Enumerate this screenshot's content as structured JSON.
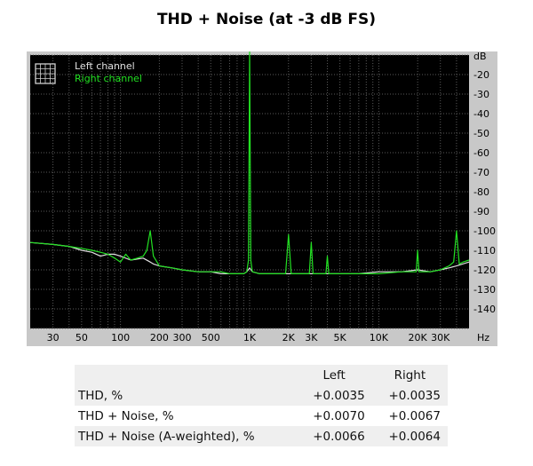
{
  "title": "THD + Noise (at -3 dB FS)",
  "chart_data": {
    "type": "line",
    "title": "THD + Noise (at -3 dB FS)",
    "xscale": "log",
    "xlim": [
      20,
      50000
    ],
    "ylim": [
      -150,
      -10
    ],
    "x_unit": "Hz",
    "y_unit": "dB",
    "x_ticks": [
      {
        "value": 30,
        "label": "30"
      },
      {
        "value": 50,
        "label": "50"
      },
      {
        "value": 100,
        "label": "100"
      },
      {
        "value": 200,
        "label": "200"
      },
      {
        "value": 300,
        "label": "300"
      },
      {
        "value": 500,
        "label": "500"
      },
      {
        "value": 1000,
        "label": "1K"
      },
      {
        "value": 2000,
        "label": "2K"
      },
      {
        "value": 3000,
        "label": "3K"
      },
      {
        "value": 5000,
        "label": "5K"
      },
      {
        "value": 10000,
        "label": "10K"
      },
      {
        "value": 20000,
        "label": "20K"
      },
      {
        "value": 30000,
        "label": "30K"
      }
    ],
    "y_ticks": [
      -20,
      -30,
      -40,
      -50,
      -60,
      -70,
      -80,
      -90,
      -100,
      -110,
      -120,
      -130,
      -140
    ],
    "grid": true,
    "legend_position": "top-left",
    "series": [
      {
        "name": "Left channel",
        "color": "#e0e0e0",
        "x": [
          20,
          30,
          40,
          50,
          60,
          70,
          80,
          90,
          100,
          120,
          150,
          170,
          180,
          200,
          250,
          300,
          400,
          500,
          600,
          700,
          800,
          900,
          950,
          1000,
          1050,
          1200,
          1500,
          2000,
          2500,
          3000,
          3500,
          4000,
          5000,
          7000,
          10000,
          15000,
          20000,
          25000,
          30000,
          35000,
          40000,
          50000
        ],
        "y": [
          -106,
          -107,
          -108,
          -110,
          -111,
          -113,
          -112,
          -112,
          -113,
          -115,
          -114,
          -116,
          -117,
          -118,
          -119,
          -120,
          -121,
          -121,
          -122,
          -122,
          -122,
          -122,
          -121,
          -119,
          -121,
          -122,
          -122,
          -122,
          -122,
          -122,
          -122,
          -122,
          -122,
          -122,
          -121,
          -121,
          -120,
          -121,
          -120,
          -119,
          -118,
          -116
        ]
      },
      {
        "name": "Right channel",
        "color": "#22e022",
        "x": [
          20,
          30,
          40,
          50,
          60,
          70,
          80,
          90,
          100,
          110,
          120,
          135,
          150,
          160,
          170,
          180,
          200,
          250,
          300,
          400,
          500,
          600,
          700,
          800,
          900,
          950,
          980,
          1000,
          1020,
          1050,
          1200,
          1500,
          1900,
          2000,
          2100,
          2500,
          2900,
          3000,
          3100,
          3500,
          3900,
          4000,
          4100,
          5000,
          7000,
          10000,
          15000,
          19500,
          20000,
          20500,
          25000,
          30000,
          35000,
          38000,
          40000,
          42000,
          45000,
          50000
        ],
        "y": [
          -106,
          -107,
          -108,
          -109,
          -110,
          -111,
          -112,
          -114,
          -116,
          -112,
          -115,
          -114,
          -113,
          -110,
          -100,
          -113,
          -118,
          -119,
          -120,
          -121,
          -121,
          -121,
          -122,
          -122,
          -122,
          -121,
          -115,
          -7,
          -115,
          -121,
          -122,
          -122,
          -122,
          -102,
          -122,
          -122,
          -122,
          -106,
          -122,
          -122,
          -122,
          -113,
          -122,
          -122,
          -122,
          -122,
          -121,
          -121,
          -110,
          -121,
          -121,
          -120,
          -118,
          -116,
          -100,
          -117,
          -116,
          -115
        ]
      }
    ]
  },
  "results": {
    "headers": [
      "",
      "Left",
      "Right"
    ],
    "rows": [
      {
        "label": "THD, %",
        "left": "+0.0035",
        "right": "+0.0035"
      },
      {
        "label": "THD + Noise, %",
        "left": "+0.0070",
        "right": "+0.0067"
      },
      {
        "label": "THD + Noise (A-weighted), %",
        "left": "+0.0066",
        "right": "+0.0064"
      }
    ]
  },
  "colors": {
    "plot_background": "#000000",
    "frame": "#c8c8c8",
    "grid": "#5a5a5a",
    "left_channel": "#e0e0e0",
    "right_channel": "#22e022"
  }
}
